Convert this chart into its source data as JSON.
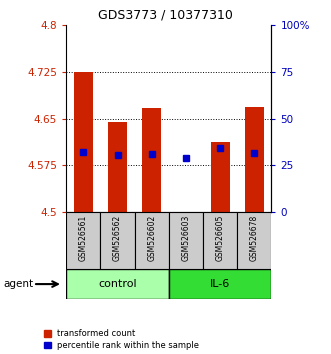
{
  "title": "GDS3773 / 10377310",
  "samples": [
    "GSM526561",
    "GSM526562",
    "GSM526602",
    "GSM526603",
    "GSM526605",
    "GSM526678"
  ],
  "red_values": [
    4.725,
    4.645,
    4.667,
    4.501,
    4.613,
    4.668
  ],
  "blue_values": [
    4.597,
    4.592,
    4.593,
    4.587,
    4.603,
    4.595
  ],
  "y_min": 4.5,
  "y_max": 4.8,
  "y_ticks": [
    4.5,
    4.575,
    4.65,
    4.725,
    4.8
  ],
  "right_ticks": [
    0,
    25,
    50,
    75,
    100
  ],
  "right_tick_labels": [
    "0",
    "25",
    "50",
    "75",
    "100%"
  ],
  "groups": [
    {
      "label": "control",
      "start": 0,
      "end": 3,
      "color": "#AAFFAA"
    },
    {
      "label": "IL-6",
      "start": 3,
      "end": 6,
      "color": "#33DD33"
    }
  ],
  "agent_label": "agent",
  "red_color": "#CC2200",
  "blue_color": "#0000CC",
  "bar_bottom": 4.5,
  "legend_red": "transformed count",
  "legend_blue": "percentile rank within the sample",
  "left_tick_color": "#CC2200",
  "right_tick_color": "#0000BB",
  "bar_width": 0.55,
  "blue_marker_size": 5,
  "title_fontsize": 9
}
